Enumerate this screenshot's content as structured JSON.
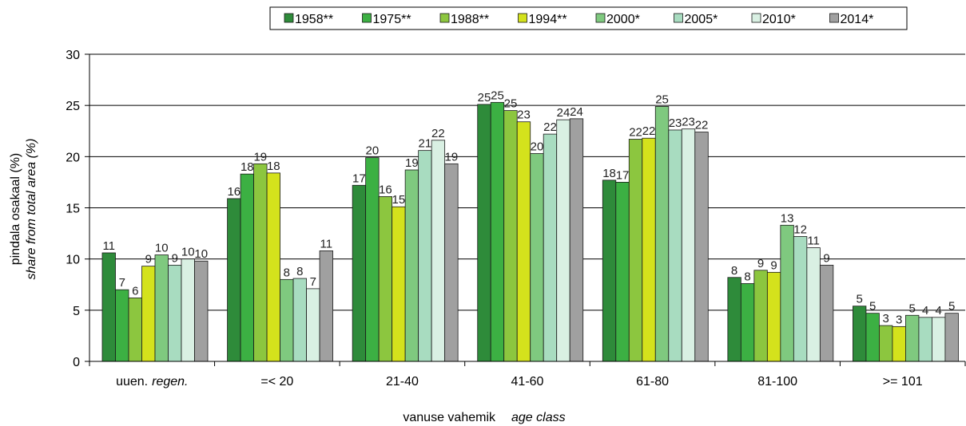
{
  "chart_data": {
    "type": "bar",
    "ylabel_line1": "pindala osakaal (%)",
    "ylabel_line2": "share from total area (%)",
    "xlabel_line1": "vanuse vahemik",
    "xlabel_line2": "age class",
    "categories": [
      {
        "main": "uuen.",
        "italic": "regen."
      },
      {
        "main": "=< 20",
        "italic": ""
      },
      {
        "main": "21-40",
        "italic": ""
      },
      {
        "main": "41-60",
        "italic": ""
      },
      {
        "main": "61-80",
        "italic": ""
      },
      {
        "main": "81-100",
        "italic": ""
      },
      {
        "main": ">= 101",
        "italic": ""
      }
    ],
    "ylim": [
      0,
      30
    ],
    "yticks": [
      0,
      5,
      10,
      15,
      20,
      25,
      30
    ],
    "grid": true,
    "legend_position": "top",
    "series": [
      {
        "name": "1958**",
        "color": "#2e8b3a",
        "values": [
          10.6,
          15.9,
          17.2,
          25.1,
          17.7,
          8.2,
          5.4
        ],
        "labels": [
          "11",
          "16",
          "17",
          "25",
          "18",
          "8",
          "5"
        ]
      },
      {
        "name": "1975**",
        "color": "#3cb043",
        "values": [
          7.0,
          18.3,
          19.9,
          25.3,
          17.5,
          7.6,
          4.7
        ],
        "labels": [
          "7",
          "18",
          "20",
          "25",
          "17",
          "8",
          "5"
        ]
      },
      {
        "name": "1988**",
        "color": "#8cc63f",
        "values": [
          6.2,
          19.3,
          16.1,
          24.5,
          21.7,
          8.9,
          3.5
        ],
        "labels": [
          "6",
          "19",
          "16",
          "25",
          "22",
          "9",
          "3"
        ]
      },
      {
        "name": "1994**",
        "color": "#d4e21c",
        "values": [
          9.3,
          18.4,
          15.1,
          23.4,
          21.8,
          8.7,
          3.4
        ],
        "labels": [
          "9",
          "18",
          "15",
          "23",
          "22",
          "9",
          "3"
        ]
      },
      {
        "name": "2000*",
        "color": "#7fc97f",
        "values": [
          10.4,
          8.0,
          18.7,
          20.3,
          24.9,
          13.3,
          4.5
        ],
        "labels": [
          "10",
          "8",
          "19",
          "20",
          "25",
          "13",
          "5"
        ]
      },
      {
        "name": "2005*",
        "color": "#a8dcc0",
        "values": [
          9.4,
          8.1,
          20.6,
          22.2,
          22.6,
          12.2,
          4.3
        ],
        "labels": [
          "9",
          "8",
          "21",
          "22",
          "23",
          "12",
          "4"
        ]
      },
      {
        "name": "2010*",
        "color": "#d9f0e3",
        "values": [
          10.0,
          7.1,
          21.6,
          23.6,
          22.7,
          11.1,
          4.3
        ],
        "labels": [
          "10",
          "7",
          "22",
          "24",
          "23",
          "11",
          "4"
        ]
      },
      {
        "name": "2014*",
        "color": "#a0a0a0",
        "values": [
          9.8,
          10.8,
          19.3,
          23.7,
          22.4,
          9.4,
          4.7
        ],
        "labels": [
          "10",
          "11",
          "19",
          "24",
          "22",
          "9",
          "5"
        ]
      }
    ]
  }
}
